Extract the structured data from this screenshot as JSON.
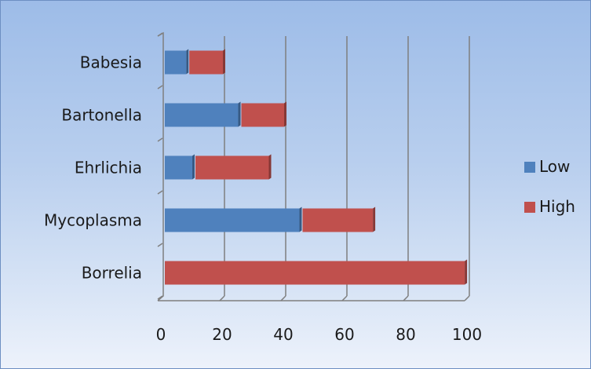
{
  "chart_data": {
    "type": "bar",
    "orientation": "horizontal",
    "stacked": true,
    "categories": [
      "Babesia",
      "Bartonella",
      "Ehrlichia",
      "Mycoplasma",
      "Borrelia"
    ],
    "series": [
      {
        "name": "Low",
        "values": [
          8,
          25,
          10,
          45,
          0
        ],
        "color": "#4f81bd"
      },
      {
        "name": "High",
        "values": [
          12,
          15,
          25,
          24,
          99
        ],
        "color": "#c0504d"
      }
    ],
    "xlim": [
      0,
      100
    ],
    "xticks": [
      "0",
      "20",
      "40",
      "60",
      "80",
      "100"
    ],
    "grid": true,
    "legend_position": "right",
    "title": "",
    "xlabel": "",
    "ylabel": ""
  }
}
